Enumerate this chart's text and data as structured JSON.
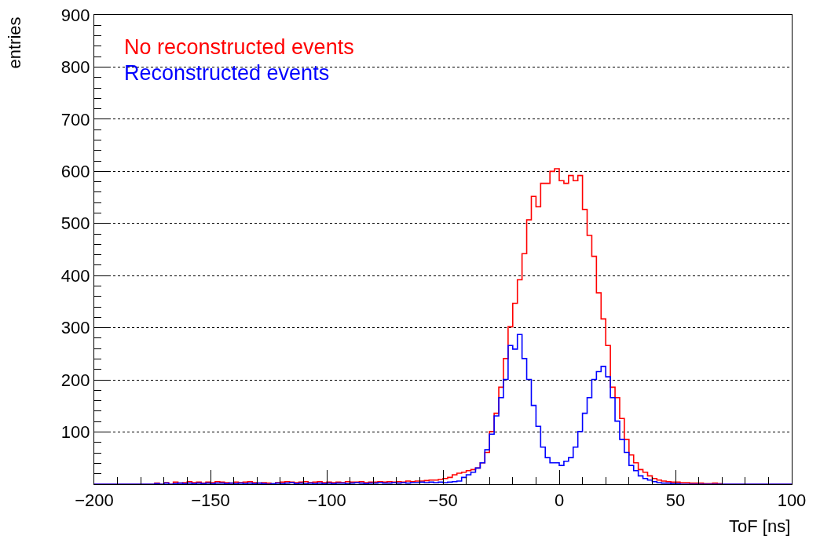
{
  "chart_data": {
    "type": "histogram",
    "xlabel": "ToF [ns]",
    "ylabel": "entries",
    "bins": [
      -200,
      -198,
      -196,
      -194,
      -192,
      -190,
      -188,
      -186,
      -184,
      -182,
      -180,
      -178,
      -176,
      -174,
      -172,
      -170,
      -168,
      -166,
      -164,
      -162,
      -160,
      -158,
      -156,
      -154,
      -152,
      -150,
      -148,
      -146,
      -144,
      -142,
      -140,
      -138,
      -136,
      -134,
      -132,
      -130,
      -128,
      -126,
      -124,
      -122,
      -120,
      -118,
      -116,
      -114,
      -112,
      -110,
      -108,
      -106,
      -104,
      -102,
      -100,
      -98,
      -96,
      -94,
      -92,
      -90,
      -88,
      -86,
      -84,
      -82,
      -80,
      -78,
      -76,
      -74,
      -72,
      -70,
      -68,
      -66,
      -64,
      -62,
      -60,
      -58,
      -56,
      -54,
      -52,
      -50,
      -48,
      -46,
      -44,
      -42,
      -40,
      -38,
      -36,
      -34,
      -32,
      -30,
      -28,
      -26,
      -24,
      -22,
      -20,
      -18,
      -16,
      -14,
      -12,
      -10,
      -8,
      -6,
      -4,
      -2,
      0,
      2,
      4,
      6,
      8,
      10,
      12,
      14,
      16,
      18,
      20,
      22,
      24,
      26,
      28,
      30,
      32,
      34,
      36,
      38,
      40,
      42,
      44,
      46,
      48,
      50,
      52,
      54,
      56,
      58,
      60,
      62,
      64,
      66,
      68,
      70,
      72,
      74,
      76,
      78,
      80,
      82,
      84,
      86,
      88,
      90,
      92,
      94,
      96,
      98,
      100
    ],
    "series": [
      {
        "name": "No reconstructed events",
        "color": "#ff0000",
        "values": [
          0,
          0,
          0,
          0,
          0,
          0,
          0,
          0,
          0,
          0,
          0,
          0,
          0,
          2,
          0,
          3,
          0,
          4,
          2,
          3,
          5,
          3,
          4,
          2,
          4,
          3,
          5,
          4,
          3,
          2,
          4,
          3,
          4,
          5,
          3,
          2,
          3,
          2,
          0,
          3,
          4,
          5,
          4,
          3,
          4,
          5,
          3,
          4,
          5,
          3,
          4,
          3,
          4,
          3,
          5,
          4,
          4,
          5,
          3,
          4,
          4,
          5,
          4,
          5,
          4,
          5,
          4,
          6,
          5,
          6,
          6,
          7,
          8,
          8,
          9,
          11,
          13,
          18,
          21,
          23,
          26,
          28,
          31,
          41,
          61,
          101,
          136,
          186,
          241,
          302,
          347,
          392,
          442,
          507,
          552,
          532,
          577,
          577,
          600,
          605,
          582,
          577,
          592,
          582,
          592,
          527,
          477,
          437,
          367,
          317,
          266,
          186,
          166,
          126,
          86,
          56,
          41,
          28,
          23,
          16,
          11,
          8,
          6,
          5,
          4,
          4,
          3,
          3,
          2,
          2,
          2,
          1,
          1,
          2,
          1,
          0,
          0,
          0,
          0,
          0,
          0,
          0,
          0,
          0,
          0,
          0,
          0,
          0,
          0,
          0
        ]
      },
      {
        "name": "Reconstructed events",
        "color": "#0000ff",
        "values": [
          0,
          0,
          0,
          0,
          0,
          0,
          0,
          0,
          0,
          0,
          0,
          0,
          0,
          1,
          0,
          2,
          0,
          1,
          2,
          1,
          2,
          1,
          2,
          1,
          2,
          1,
          2,
          2,
          1,
          2,
          1,
          2,
          1,
          2,
          1,
          2,
          1,
          0,
          1,
          2,
          1,
          2,
          3,
          1,
          2,
          1,
          2,
          1,
          2,
          1,
          2,
          1,
          2,
          2,
          1,
          2,
          3,
          2,
          1,
          2,
          2,
          3,
          2,
          2,
          3,
          2,
          3,
          2,
          3,
          3,
          4,
          3,
          4,
          3,
          4,
          3,
          4,
          5,
          6,
          13,
          18,
          23,
          31,
          41,
          66,
          96,
          131,
          166,
          201,
          266,
          259,
          287,
          241,
          201,
          151,
          111,
          71,
          51,
          41,
          41,
          36,
          44,
          51,
          71,
          101,
          136,
          166,
          201,
          216,
          226,
          206,
          166,
          121,
          86,
          61,
          36,
          26,
          16,
          11,
          8,
          5,
          3,
          2,
          2,
          1,
          1,
          0,
          0,
          0,
          0,
          0,
          0,
          0,
          0,
          0,
          0,
          0,
          0,
          0,
          0,
          0,
          0,
          0,
          0,
          0,
          0,
          0,
          0,
          0,
          0
        ]
      }
    ],
    "xlim": [
      -200,
      100
    ],
    "xticks": [
      -200,
      -150,
      -100,
      -50,
      0,
      50,
      100
    ],
    "ylim": [
      0,
      900
    ],
    "yticks": [
      100,
      200,
      300,
      400,
      500,
      600,
      700,
      800,
      900
    ],
    "grid": "y",
    "legend": "top left"
  }
}
